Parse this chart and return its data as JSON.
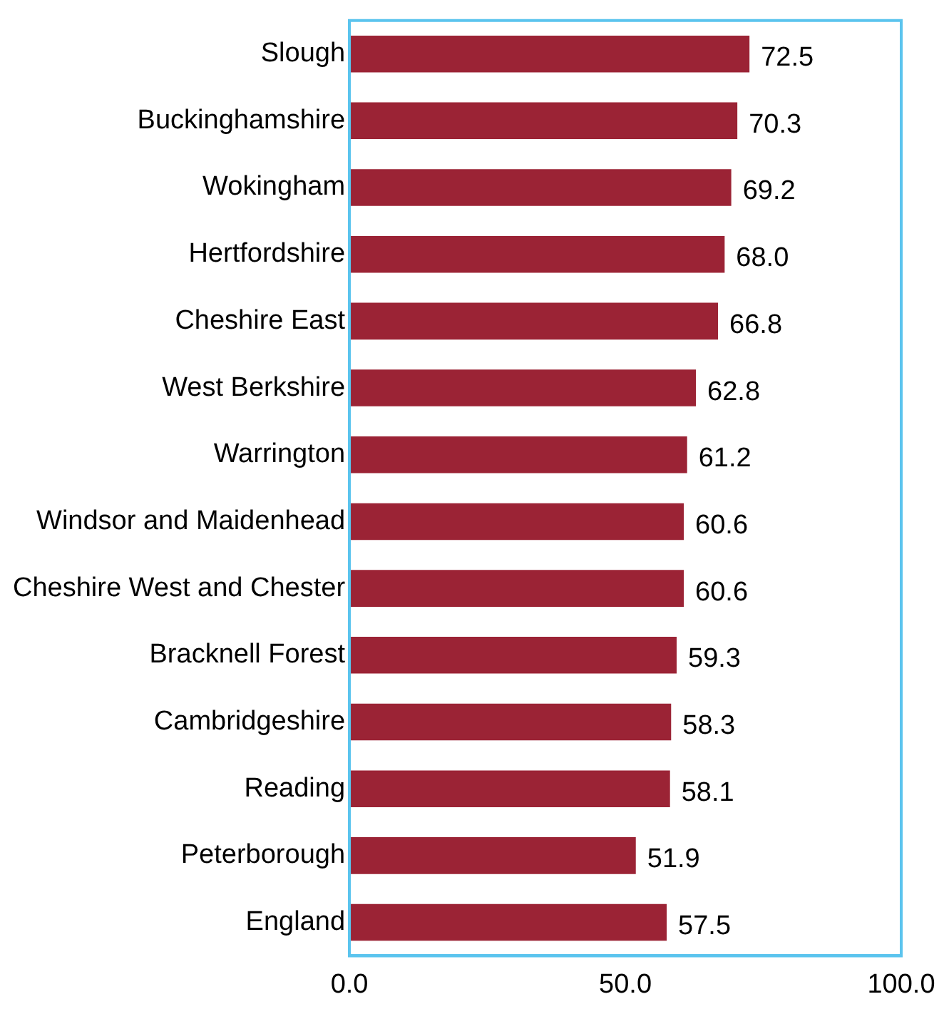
{
  "chart_data": {
    "type": "bar",
    "orientation": "horizontal",
    "categories": [
      "Slough",
      "Buckinghamshire",
      "Wokingham",
      "Hertfordshire",
      "Cheshire East",
      "West Berkshire",
      "Warrington",
      "Windsor and Maidenhead",
      "Cheshire West and Chester",
      "Bracknell Forest",
      "Cambridgeshire",
      "Reading",
      "Peterborough",
      "England"
    ],
    "values": [
      72.5,
      70.3,
      69.2,
      68.0,
      66.8,
      62.8,
      61.2,
      60.6,
      60.6,
      59.3,
      58.3,
      58.1,
      51.9,
      57.5
    ],
    "value_labels": [
      "72.5",
      "70.3",
      "69.2",
      "68.0",
      "66.8",
      "62.8",
      "61.2",
      "60.6",
      "60.6",
      "59.3",
      "58.3",
      "58.1",
      "51.9",
      "57.5"
    ],
    "color": "#9b2335",
    "xlim": [
      0,
      100
    ],
    "xticks": [
      {
        "value": 0,
        "label": "0.0"
      },
      {
        "value": 50,
        "label": "50.0"
      },
      {
        "value": 100,
        "label": "100.0"
      }
    ],
    "grid": false,
    "legend": false
  }
}
